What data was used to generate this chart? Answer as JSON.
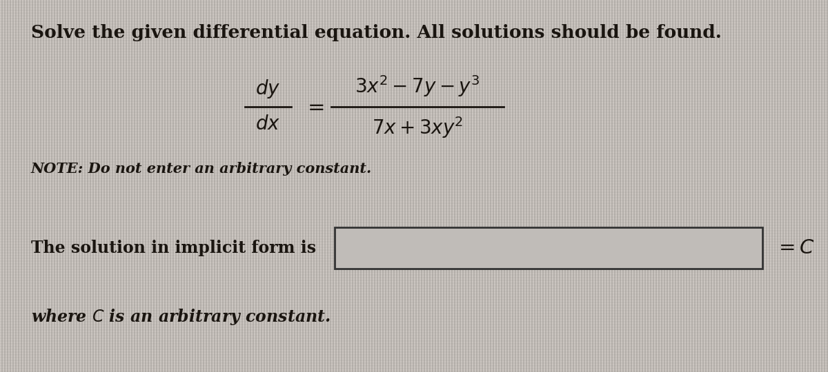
{
  "bg_color_light": "#d4d0cc",
  "bg_color_dark": "#b8b4b0",
  "stripe_color": "#bebab6",
  "box_bg": "#c8c4c0",
  "title_text": "Solve the given differential equation. All solutions should be found.",
  "note_text": "NOTE: Do not enter an arbitrary constant.",
  "solution_text": "The solution in implicit form is",
  "where_text": "where $C$ is an arbitrary constant.",
  "title_fontsize": 19,
  "body_fontsize": 17,
  "math_fontsize": 18,
  "note_fontsize": 15,
  "text_color": "#1a1510",
  "box_edge_color": "#333333",
  "fig_width": 12.0,
  "fig_height": 5.4,
  "dpi": 100
}
